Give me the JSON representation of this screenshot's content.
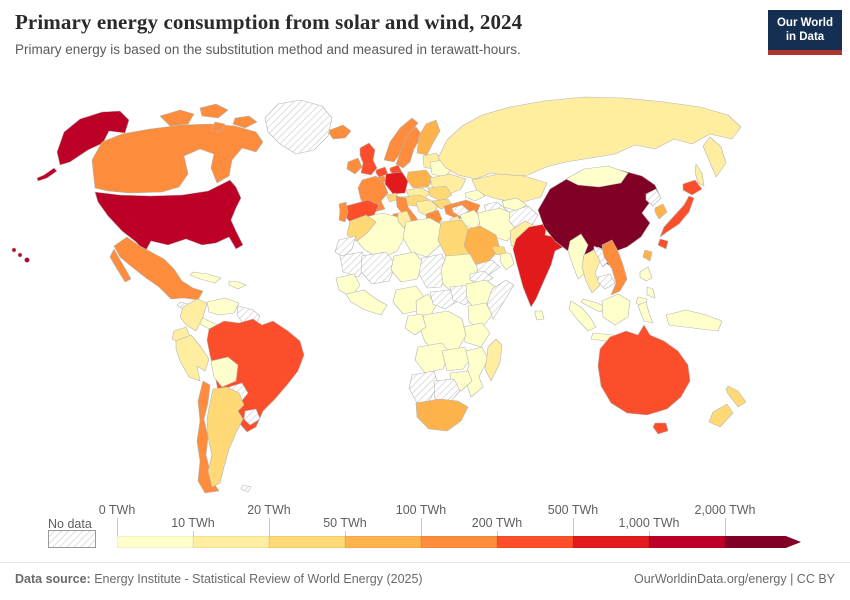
{
  "header": {
    "title": "Primary energy consumption from solar and wind, 2024",
    "subtitle": "Primary energy is based on the substitution method and measured in terawatt-hours."
  },
  "logo": {
    "line1": "Our World",
    "line2": "in Data",
    "bg": "#142f52",
    "accent": "#ad352e"
  },
  "legend": {
    "no_data_label": "No data",
    "ticks": [
      "0 TWh",
      "10 TWh",
      "20 TWh",
      "50 TWh",
      "100 TWh",
      "200 TWh",
      "500 TWh",
      "1,000 TWh",
      "2,000 TWh"
    ]
  },
  "footer": {
    "source_label": "Data source:",
    "source_text": " Energy Institute - Statistical Review of World Energy (2025)",
    "right_text": "OurWorldinData.org/energy | CC BY"
  },
  "chart_data": {
    "type": "choropleth",
    "title": "Primary energy consumption from solar and wind, 2024",
    "unit": "TWh",
    "bin_edges_twh": [
      0,
      10,
      20,
      50,
      100,
      200,
      500,
      1000,
      2000
    ],
    "legend_position": "bottom",
    "bins": [
      {
        "label": "0-10",
        "color": "#FFFFCC"
      },
      {
        "label": "10-20",
        "color": "#FFEDA0"
      },
      {
        "label": "20-50",
        "color": "#FED976"
      },
      {
        "label": "50-100",
        "color": "#FEB24C"
      },
      {
        "label": "100-200",
        "color": "#FD8D3C"
      },
      {
        "label": "200-500",
        "color": "#FC4E2A"
      },
      {
        "label": "500-1000",
        "color": "#E31A1C"
      },
      {
        "label": "1000-2000",
        "color": "#BD0026"
      },
      {
        "label": "2000+",
        "color": "#800026"
      }
    ],
    "no_data": {
      "label": "No data",
      "fill": "#ffffff",
      "hatch": "#cccccc",
      "border": "#c6c6c6"
    },
    "countries": {
      "united-states": "1000-2000",
      "canada": "100-200",
      "greenland": "no-data",
      "mexico": "100-200",
      "cuba": "0-10",
      "hispaniola": "0-10",
      "honduras-nicaragua": "no-data",
      "panama-costa-rica": "0-10",
      "colombia": "10-20",
      "venezuela": "0-10",
      "guyanas": "no-data",
      "brazil": "200-500",
      "ecuador": "10-20",
      "peru": "10-20",
      "bolivia": "0-10",
      "paraguay": "no-data",
      "uruguay": "no-data",
      "argentina": "20-50",
      "chile": "100-200",
      "falkland-islands": "no-data",
      "iceland": "100-200",
      "ireland": "100-200",
      "united-kingdom": "200-500",
      "norway": "100-200",
      "sweden": "100-200",
      "finland": "50-100",
      "denmark": "200-500",
      "baltics": "10-20",
      "netherlands": "200-500",
      "belgium": "100-200",
      "germany": "500-1000",
      "poland": "50-100",
      "belarus": "0-10",
      "ukraine": "10-20",
      "czechia-slovakia": "10-20",
      "austria-hungary": "20-50",
      "switzerland": "20-50",
      "france": "100-200",
      "spain": "200-500",
      "portugal": "100-200",
      "italy": "100-200",
      "balkans": "10-20",
      "romania": "20-50",
      "bulgaria": "20-50",
      "greece": "100-200",
      "turkey": "100-200",
      "russia": "10-20",
      "kazakhstan": "10-20",
      "uzbekistan": "0-10",
      "turkmenistan": "no-data",
      "caucasus": "0-10",
      "syria": "no-data",
      "iraq": "0-10",
      "iran": "0-10",
      "saudi-arabia": "50-100",
      "yemen": "no-data",
      "oman": "0-10",
      "uae": "20-50",
      "jordan-israel": "10-20",
      "afghanistan": "no-data",
      "pakistan": "10-20",
      "india": "500-1000",
      "nepal": "0-10",
      "bangladesh": "10-20",
      "sri-lanka": "0-10",
      "china": "2000+",
      "mongolia": "0-10",
      "north-korea": "no-data",
      "south-korea": "50-100",
      "japan": "200-500",
      "taiwan": "50-100",
      "myanmar": "0-10",
      "thailand": "10-20",
      "laos": "no-data",
      "cambodia": "no-data",
      "vietnam": "100-200",
      "philippines": "0-10",
      "malaysia": "0-10",
      "indonesia": "0-10",
      "new-guinea": "0-10",
      "morocco": "20-50",
      "western-sahara": "no-data",
      "algeria": "0-10",
      "tunisia": "10-20",
      "libya": "0-10",
      "egypt": "20-50",
      "mauritania": "no-data",
      "mali": "no-data",
      "niger": "0-10",
      "chad": "no-data",
      "sudan": "0-10",
      "eritrea": "no-data",
      "senegal": "0-10",
      "guinea-coast": "0-10",
      "nigeria": "0-10",
      "cameroon": "0-10",
      "central-african-republic": "no-data",
      "south-sudan": "no-data",
      "ethiopia": "0-10",
      "somalia": "no-data",
      "kenya": "0-10",
      "tanzania": "0-10",
      "drc": "0-10",
      "gabon-congo": "0-10",
      "angola": "0-10",
      "zambia": "0-10",
      "mozambique": "0-10",
      "zimbabwe": "0-10",
      "namibia": "no-data",
      "botswana": "no-data",
      "south-africa": "50-100",
      "madagascar": "10-20",
      "australia": "200-500",
      "new-zealand": "20-50"
    }
  }
}
